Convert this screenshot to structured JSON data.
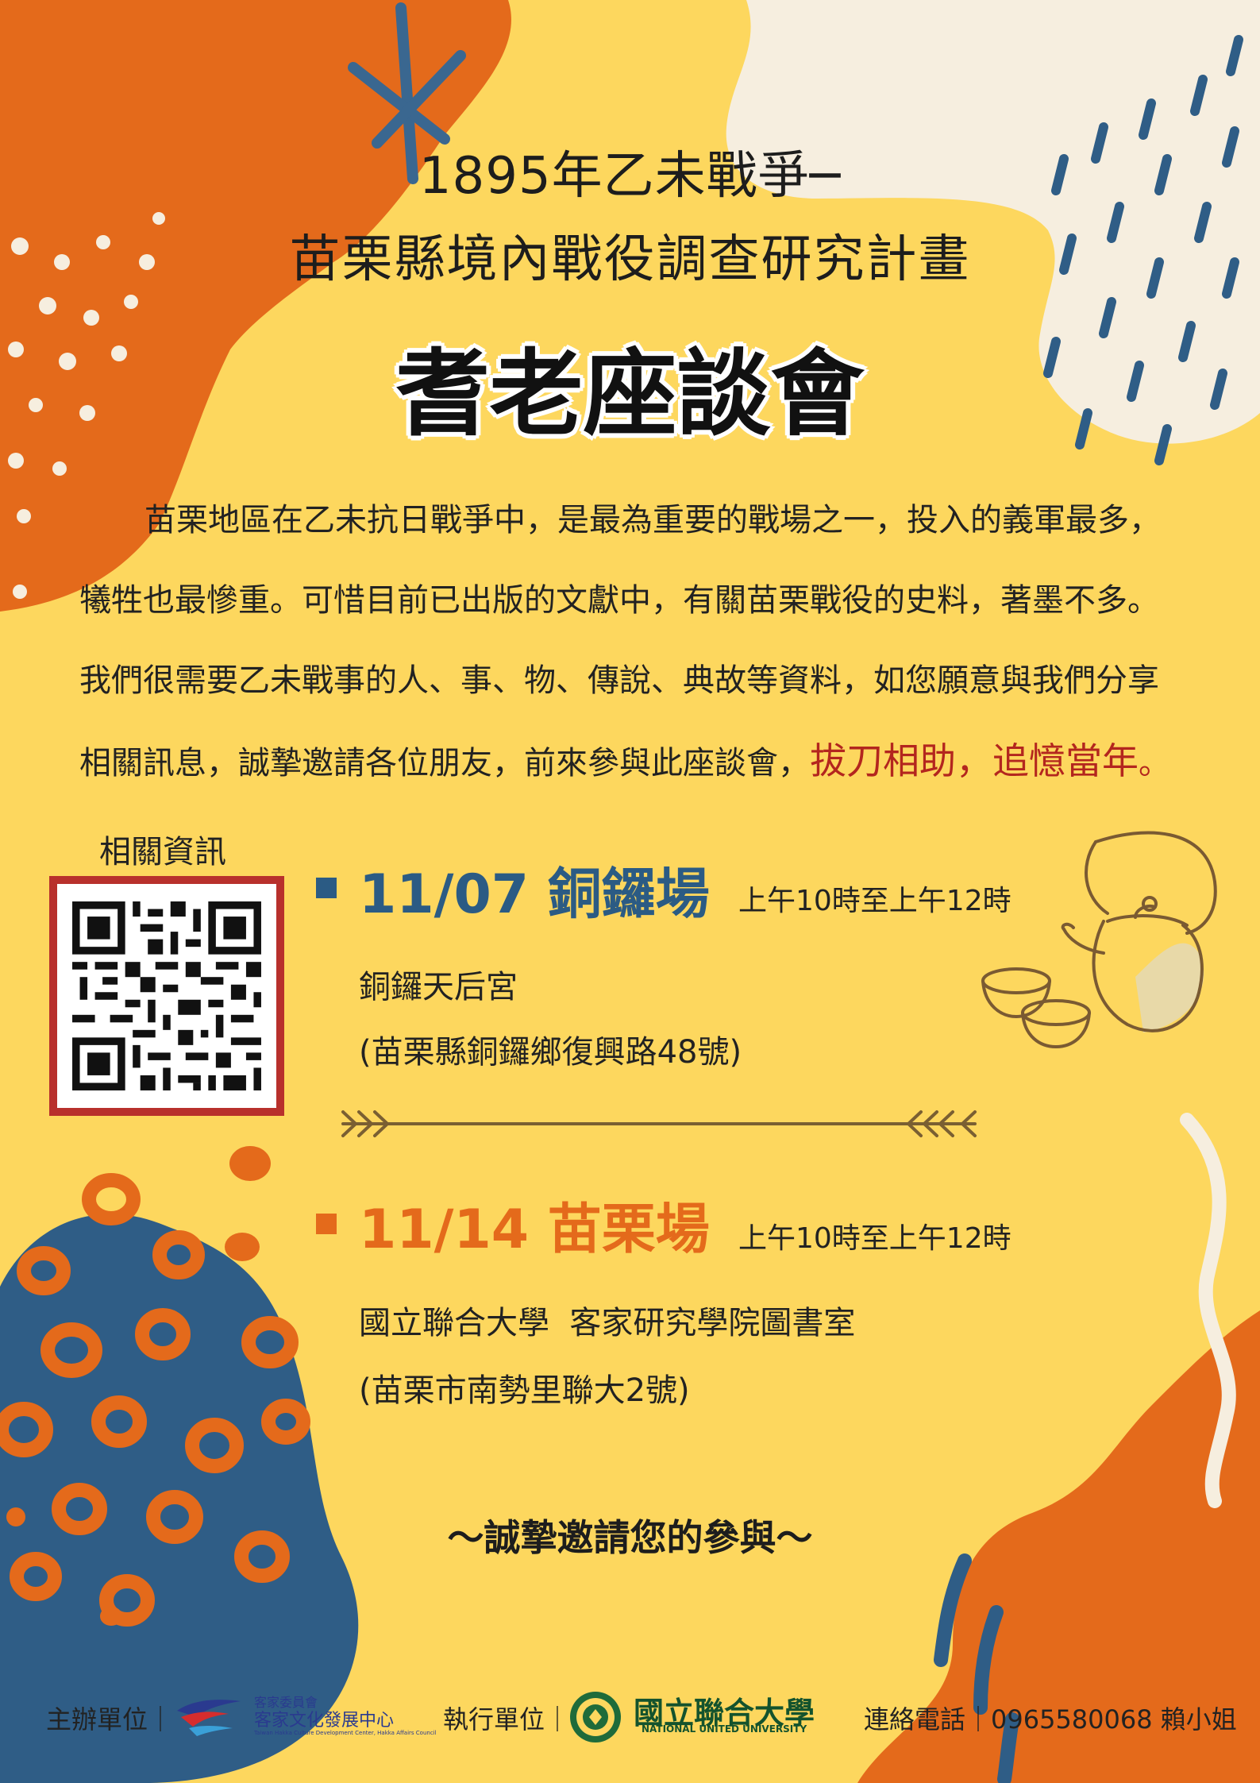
{
  "header": {
    "line1": "1895年乙未戰爭─",
    "line2": "苗栗縣境內戰役調查研究計畫",
    "main_title": "耆老座談會"
  },
  "intro": {
    "line1": "苗栗地區在乙未抗日戰爭中，是最為重要的戰場之一，投入的義軍最多，",
    "line2": "犧牲也最慘重。可惜目前已出版的文獻中，有關苗栗戰役的史料，著墨不多。",
    "line3": "我們很需要乙未戰事的人、事、物、傳說、典故等資料，如您願意與我們分享",
    "line4_plain": "相關訊息，誠摯邀請各位朋友，前來參與此座談會，",
    "line4_red": "拔刀相助，追憶當年",
    "line4_end": "。"
  },
  "info": {
    "label": "相關資訊"
  },
  "sessions": [
    {
      "date_place": "11/07 銅鑼場",
      "time": "上午10時至上午12時",
      "venue": "銅鑼天后宮",
      "address": "(苗栗縣銅鑼鄉復興路48號)"
    },
    {
      "date_place": "11/14 苗栗場",
      "time": "上午10時至上午12時",
      "venue": "國立聯合大學  客家研究學院圖書室",
      "address": "(苗栗市南勢里聯大2號)"
    }
  ],
  "invite": "～誠摯邀請您的參與～",
  "footer": {
    "organizer_label": "主辦單位｜",
    "organizer_name": "客家委員會",
    "organizer_center": "客家文化發展中心",
    "organizer_en": "Taiwan Hakka Culture Development Center, Hakka Affairs Council",
    "executor_label": "執行單位｜",
    "executor_name": "國立聯合大學",
    "executor_en": "NATIONAL UNITED UNIVERSITY",
    "contact_label": "連絡電話｜",
    "contact_value": "0965580068  賴小姐"
  },
  "colors": {
    "background": "#fdd75e",
    "orange": "#e46a1b",
    "blue": "#2b5b84",
    "cream": "#f6eedf",
    "red": "#b3261e"
  }
}
